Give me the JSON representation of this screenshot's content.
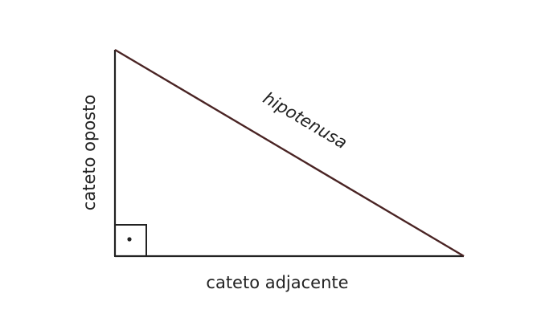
{
  "diagram": {
    "labels": {
      "hypotenuse": "hipotenusa",
      "opposite": "cateto oposto",
      "adjacent": "cateto adjacente"
    },
    "colors": {
      "hypotenuse_line": "#4a2424",
      "leg_line": "#222222",
      "text": "#222222",
      "background": "#ffffff"
    },
    "right_angle_marker": "square-with-dot"
  }
}
